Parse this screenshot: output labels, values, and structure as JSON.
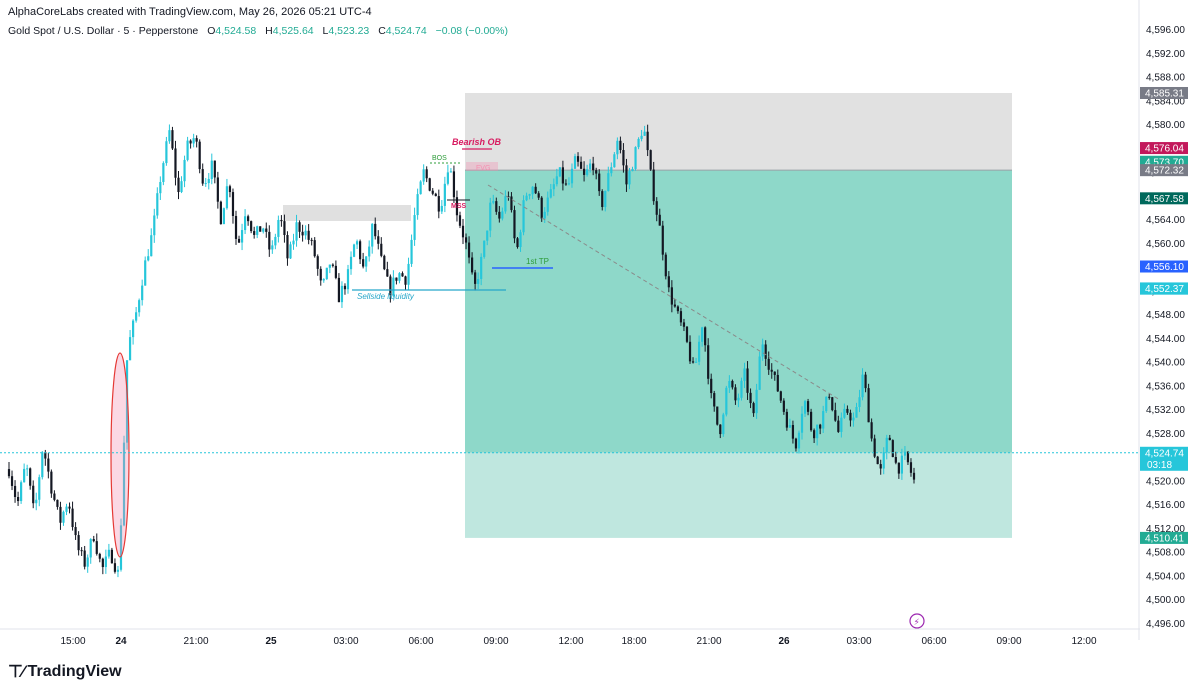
{
  "header": {
    "credit": "AlphaCoreLabs created with TradingView.com, May 26, 2026 05:21 UTC-4"
  },
  "symbol": {
    "name": "Gold Spot / U.S. Dollar · 5 · Pepperstone",
    "open_label": "O",
    "open": "4,524.58",
    "high_label": "H",
    "high": "4,525.64",
    "low_label": "L",
    "low": "4,523.23",
    "close_label": "C",
    "close": "4,524.74",
    "change": "−0.08 (−0.00%)"
  },
  "brand": {
    "name": "TradingView"
  },
  "colors": {
    "bull": "#26c6da",
    "bear": "#131722",
    "target_zone": "#7ad1c0",
    "stop_zone": "#dcdcdc",
    "accent_red": "#d81b60",
    "accent_green": "#2e9c3a",
    "accent_blue": "#2962ff"
  },
  "chart_data": {
    "type": "candlestick",
    "title": "Gold Spot / U.S. Dollar · 5 · Pepperstone",
    "ylim": [
      4494,
      4598
    ],
    "y_ticks": [
      "4,596.00",
      "4,592.00",
      "4,588.00",
      "4,584.00",
      "4,580.00",
      "4,576.00",
      "4,572.00",
      "4,568.00",
      "4,564.00",
      "4,560.00",
      "4,556.00",
      "4,552.00",
      "4,548.00",
      "4,544.00",
      "4,540.00",
      "4,536.00",
      "4,532.00",
      "4,528.00",
      "4,524.00",
      "4,520.00",
      "4,516.00",
      "4,512.00",
      "4,508.00",
      "4,504.00",
      "4,500.00",
      "4,496.00"
    ],
    "x_ticks": [
      {
        "label": "15:00",
        "bold": false
      },
      {
        "label": "24",
        "bold": true
      },
      {
        "label": "21:00",
        "bold": false
      },
      {
        "label": "25",
        "bold": true
      },
      {
        "label": "03:00",
        "bold": false
      },
      {
        "label": "06:00",
        "bold": false
      },
      {
        "label": "09:00",
        "bold": false
      },
      {
        "label": "12:00",
        "bold": false
      },
      {
        "label": "18:00",
        "bold": false
      },
      {
        "label": "21:00",
        "bold": false
      },
      {
        "label": "26",
        "bold": true
      },
      {
        "label": "03:00",
        "bold": false
      },
      {
        "label": "06:00",
        "bold": false
      },
      {
        "label": "09:00",
        "bold": false
      },
      {
        "label": "12:00",
        "bold": false
      }
    ],
    "price_path": [
      4522,
      4516,
      4523,
      4514,
      4526,
      4519,
      4513,
      4517,
      4509,
      4506,
      4511,
      4505,
      4508,
      4504,
      4542,
      4548,
      4556,
      4562,
      4572,
      4579,
      4568,
      4576,
      4578,
      4570,
      4573,
      4564,
      4571,
      4559,
      4566,
      4561,
      4563,
      4558,
      4565,
      4557,
      4563,
      4562,
      4559,
      4552,
      4557,
      4551,
      4554,
      4561,
      4555,
      4563,
      4557,
      4552,
      4555,
      4554,
      4565,
      4572,
      4569,
      4566,
      4574,
      4565,
      4560,
      4552,
      4558,
      4567,
      4564,
      4569,
      4558,
      4568,
      4570,
      4565,
      4568,
      4572,
      4569,
      4574,
      4571,
      4574,
      4566,
      4572,
      4578,
      4570,
      4575,
      4580,
      4570,
      4562,
      4552,
      4548,
      4544,
      4538,
      4547,
      4534,
      4528,
      4537,
      4533,
      4538,
      4530,
      4544,
      4539,
      4535,
      4530,
      4526,
      4534,
      4528,
      4530,
      4535,
      4528,
      4532,
      4530,
      4538,
      4527,
      4521,
      4528,
      4522,
      4524,
      4520
    ],
    "price_boxes": [
      {
        "label": "4,585.31",
        "value": 4585.31,
        "color": "#787b86"
      },
      {
        "label": "4,576.04",
        "value": 4576.04,
        "color": "#c2185b"
      },
      {
        "label": "4,573.73",
        "value": 4573.73,
        "color": "#22ab94"
      },
      {
        "label": "4,573.70",
        "value": 4573.7,
        "color": "#22ab94"
      },
      {
        "label": "4,572.32",
        "value": 4572.32,
        "color": "#787b86"
      },
      {
        "label": "4,567.58",
        "value": 4567.58,
        "color": "#00695c"
      },
      {
        "label": "4,556.10",
        "value": 4556.1,
        "color": "#2962ff"
      },
      {
        "label": "4,552.41",
        "value": 4552.41,
        "color": "#26c6da"
      },
      {
        "label": "4,552.37",
        "value": 4552.37,
        "color": "#26c6da"
      },
      {
        "label": "4,510.41",
        "value": 4510.41,
        "color": "#22ab94"
      }
    ],
    "last_price": {
      "label": "4,524.74",
      "value": 4524.74,
      "countdown": "03:18",
      "color": "#26c6da"
    },
    "position": {
      "entry": 4572.32,
      "stop": 4585.31,
      "target": 4510.41
    },
    "annotations": {
      "bearish_ob": "Bearish OB",
      "bos": "BOS",
      "fvg": "FVG",
      "mss": "MSS",
      "first_tp": "1st TP",
      "sellside": "Sellside liquidity"
    }
  }
}
